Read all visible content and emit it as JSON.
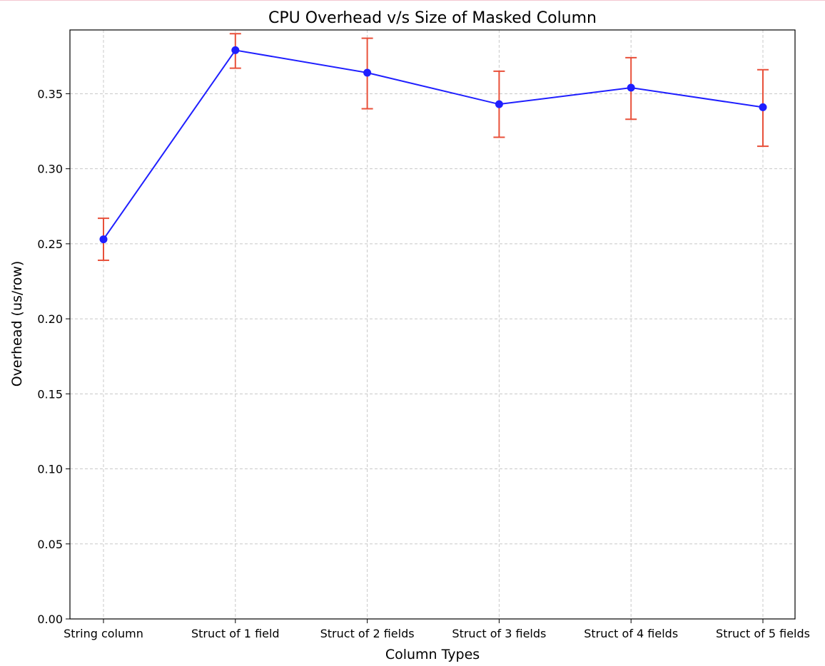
{
  "chart_data": {
    "type": "line",
    "title": "CPU Overhead v/s Size of Masked Column",
    "xlabel": "Column Types",
    "ylabel": "Overhead (us/row)",
    "categories": [
      "String column",
      "Struct of 1 field",
      "Struct of 2 fields",
      "Struct of 3 fields",
      "Struct of 4 fields",
      "Struct of 5 fields"
    ],
    "series": [
      {
        "values": [
          0.253,
          0.379,
          0.364,
          0.343,
          0.354,
          0.341
        ],
        "error_low": [
          0.239,
          0.367,
          0.34,
          0.321,
          0.333,
          0.315
        ],
        "error_high": [
          0.267,
          0.39,
          0.387,
          0.365,
          0.374,
          0.366
        ],
        "color": "#1f1fff",
        "error_color": "#e8503a",
        "marker": "circle"
      }
    ],
    "ylim": [
      0,
      0.3925
    ],
    "yticks": [
      0.0,
      0.05,
      0.1,
      0.15,
      0.2,
      0.25,
      0.3,
      0.35
    ],
    "ytick_labels": [
      "0.00",
      "0.05",
      "0.10",
      "0.15",
      "0.20",
      "0.25",
      "0.30",
      "0.35"
    ],
    "grid": true,
    "grid_style": "dashed",
    "legend": "none"
  }
}
